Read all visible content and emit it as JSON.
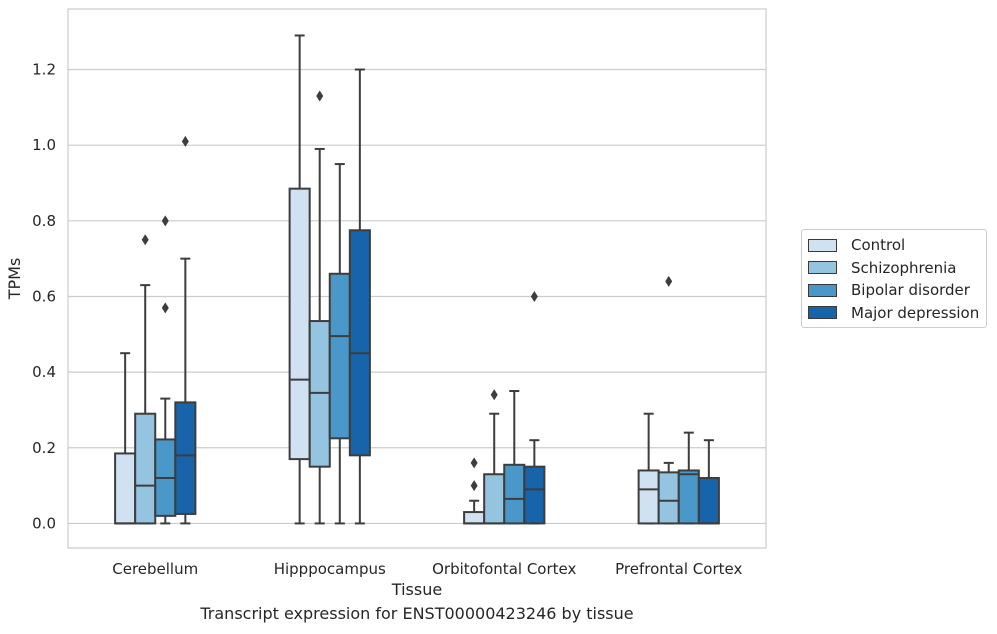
{
  "chart_data": {
    "type": "box",
    "title": "",
    "caption": "Transcript expression for ENST00000423246 by tissue",
    "xlabel": "Tissue",
    "ylabel": "TPMs",
    "ylim": [
      -0.065,
      1.36
    ],
    "yticks": [
      "0.0",
      "0.2",
      "0.4",
      "0.6",
      "0.8",
      "1.0",
      "1.2"
    ],
    "grid": true,
    "legend_position": "right",
    "categories": [
      "Cerebellum",
      "Hipppocampus",
      "Orbitofontal Cortex",
      "Prefrontal Cortex"
    ],
    "series": [
      {
        "name": "Control",
        "color": "#d0e1f2",
        "boxes": [
          {
            "whislo": 0.0,
            "q1": 0.0,
            "med": 0.0,
            "q3": 0.185,
            "whishi": 0.45,
            "fliers": []
          },
          {
            "whislo": 0.0,
            "q1": 0.17,
            "med": 0.38,
            "q3": 0.885,
            "whishi": 1.29,
            "fliers": []
          },
          {
            "whislo": 0.0,
            "q1": 0.0,
            "med": 0.0,
            "q3": 0.03,
            "whishi": 0.06,
            "fliers": [
              0.1,
              0.16
            ]
          },
          {
            "whislo": 0.0,
            "q1": 0.0,
            "med": 0.09,
            "q3": 0.14,
            "whishi": 0.29,
            "fliers": []
          }
        ]
      },
      {
        "name": "Schizophrenia",
        "color": "#94c4df",
        "boxes": [
          {
            "whislo": 0.0,
            "q1": 0.0,
            "med": 0.1,
            "q3": 0.29,
            "whishi": 0.63,
            "fliers": [
              0.75
            ]
          },
          {
            "whislo": 0.0,
            "q1": 0.15,
            "med": 0.345,
            "q3": 0.535,
            "whishi": 0.99,
            "fliers": [
              1.13
            ]
          },
          {
            "whislo": 0.0,
            "q1": 0.0,
            "med": 0.0,
            "q3": 0.13,
            "whishi": 0.29,
            "fliers": [
              0.34
            ]
          },
          {
            "whislo": 0.0,
            "q1": 0.0,
            "med": 0.06,
            "q3": 0.135,
            "whishi": 0.16,
            "fliers": [
              0.64
            ]
          }
        ]
      },
      {
        "name": "Bipolar disorder",
        "color": "#4a98c9",
        "boxes": [
          {
            "whislo": 0.0,
            "q1": 0.02,
            "med": 0.12,
            "q3": 0.222,
            "whishi": 0.33,
            "fliers": [
              0.57,
              0.8
            ]
          },
          {
            "whislo": 0.0,
            "q1": 0.225,
            "med": 0.495,
            "q3": 0.66,
            "whishi": 0.95,
            "fliers": []
          },
          {
            "whislo": 0.0,
            "q1": 0.0,
            "med": 0.065,
            "q3": 0.155,
            "whishi": 0.35,
            "fliers": []
          },
          {
            "whislo": 0.0,
            "q1": 0.0,
            "med": 0.13,
            "q3": 0.14,
            "whishi": 0.24,
            "fliers": []
          }
        ]
      },
      {
        "name": "Major depression",
        "color": "#1764ab",
        "boxes": [
          {
            "whislo": 0.0,
            "q1": 0.025,
            "med": 0.18,
            "q3": 0.32,
            "whishi": 0.7,
            "fliers": [
              1.01
            ]
          },
          {
            "whislo": 0.0,
            "q1": 0.18,
            "med": 0.45,
            "q3": 0.775,
            "whishi": 1.2,
            "fliers": []
          },
          {
            "whislo": 0.0,
            "q1": 0.0,
            "med": 0.09,
            "q3": 0.15,
            "whishi": 0.22,
            "fliers": [
              0.6
            ]
          },
          {
            "whislo": 0.0,
            "q1": 0.0,
            "med": 0.0,
            "q3": 0.12,
            "whishi": 0.22,
            "fliers": []
          }
        ]
      }
    ]
  }
}
